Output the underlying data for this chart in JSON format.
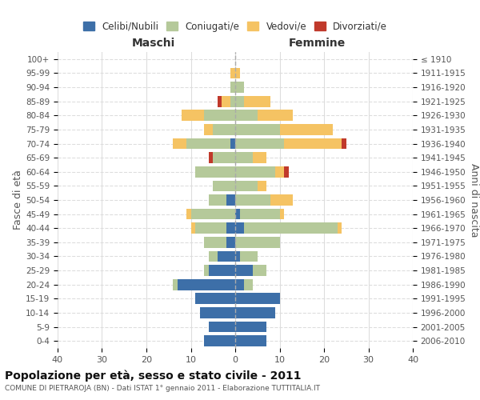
{
  "age_groups": [
    "0-4",
    "5-9",
    "10-14",
    "15-19",
    "20-24",
    "25-29",
    "30-34",
    "35-39",
    "40-44",
    "45-49",
    "50-54",
    "55-59",
    "60-64",
    "65-69",
    "70-74",
    "75-79",
    "80-84",
    "85-89",
    "90-94",
    "95-99",
    "100+"
  ],
  "birth_years": [
    "2006-2010",
    "2001-2005",
    "1996-2000",
    "1991-1995",
    "1986-1990",
    "1981-1985",
    "1976-1980",
    "1971-1975",
    "1966-1970",
    "1961-1965",
    "1956-1960",
    "1951-1955",
    "1946-1950",
    "1941-1945",
    "1936-1940",
    "1931-1935",
    "1926-1930",
    "1921-1925",
    "1916-1920",
    "1911-1915",
    "≤ 1910"
  ],
  "males": {
    "celibi": [
      7,
      6,
      8,
      9,
      13,
      6,
      4,
      2,
      2,
      0,
      2,
      0,
      0,
      0,
      1,
      0,
      0,
      0,
      0,
      0,
      0
    ],
    "coniugati": [
      0,
      0,
      0,
      0,
      1,
      1,
      2,
      5,
      7,
      10,
      4,
      5,
      9,
      5,
      10,
      5,
      7,
      1,
      1,
      0,
      0
    ],
    "vedovi": [
      0,
      0,
      0,
      0,
      0,
      0,
      0,
      0,
      1,
      1,
      0,
      0,
      0,
      0,
      3,
      2,
      5,
      2,
      0,
      1,
      0
    ],
    "divorziati": [
      0,
      0,
      0,
      0,
      0,
      0,
      0,
      0,
      0,
      0,
      0,
      0,
      0,
      1,
      0,
      0,
      0,
      1,
      0,
      0,
      0
    ]
  },
  "females": {
    "nubili": [
      7,
      7,
      9,
      10,
      2,
      4,
      1,
      0,
      2,
      1,
      0,
      0,
      0,
      0,
      0,
      0,
      0,
      0,
      0,
      0,
      0
    ],
    "coniugate": [
      0,
      0,
      0,
      0,
      2,
      3,
      4,
      10,
      21,
      9,
      8,
      5,
      9,
      4,
      11,
      10,
      5,
      2,
      2,
      0,
      0
    ],
    "vedove": [
      0,
      0,
      0,
      0,
      0,
      0,
      0,
      0,
      1,
      1,
      5,
      2,
      2,
      3,
      13,
      12,
      8,
      6,
      0,
      1,
      0
    ],
    "divorziate": [
      0,
      0,
      0,
      0,
      0,
      0,
      0,
      0,
      0,
      0,
      0,
      0,
      1,
      0,
      1,
      0,
      0,
      0,
      0,
      0,
      0
    ]
  },
  "colors": {
    "celibi": "#3d6fa8",
    "coniugati": "#b5c99a",
    "vedovi": "#f5c363",
    "divorziati": "#c0392b"
  },
  "title": "Popolazione per età, sesso e stato civile - 2011",
  "subtitle": "COMUNE DI PIETRAROJA (BN) - Dati ISTAT 1° gennaio 2011 - Elaborazione TUTTITALIA.IT",
  "ylabel_left": "Fasce di età",
  "ylabel_right": "Anni di nascita",
  "xlabel_left": "Maschi",
  "xlabel_right": "Femmine",
  "xlim": 40,
  "background_color": "#ffffff",
  "grid_color": "#dddddd",
  "legend_labels": [
    "Celibi/Nubili",
    "Coniugati/e",
    "Vedovi/e",
    "Divorziati/e"
  ]
}
